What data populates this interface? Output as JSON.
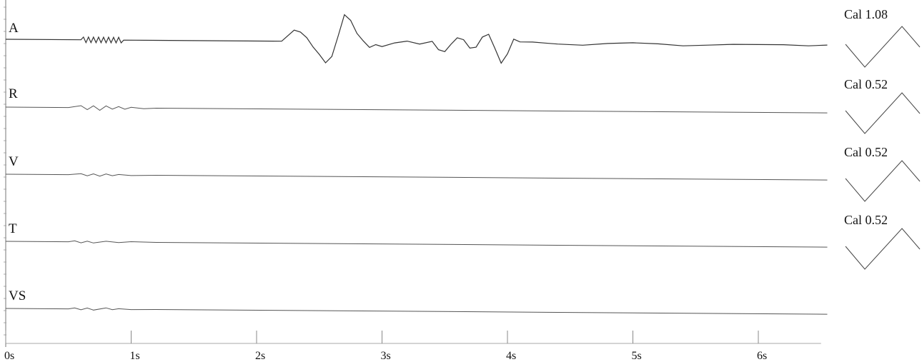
{
  "chart_data": {
    "type": "line",
    "x_tick_labels": [
      "0s",
      "1s",
      "2s",
      "3s",
      "4s",
      "5s",
      "6s"
    ],
    "x_ticks": [
      0,
      1,
      2,
      3,
      4,
      5,
      6
    ],
    "xlim": [
      0,
      6.5
    ],
    "channels": [
      {
        "label": "A",
        "calibration": "Cal 1.08",
        "points": [
          [
            0,
            0
          ],
          [
            0.6,
            0
          ],
          [
            0.62,
            0.3
          ],
          [
            0.64,
            -0.3
          ],
          [
            0.66,
            0.3
          ],
          [
            0.68,
            -0.3
          ],
          [
            0.7,
            0.3
          ],
          [
            0.72,
            -0.3
          ],
          [
            0.74,
            0.3
          ],
          [
            0.76,
            -0.3
          ],
          [
            0.78,
            0.3
          ],
          [
            0.8,
            -0.3
          ],
          [
            0.82,
            0.3
          ],
          [
            0.84,
            -0.3
          ],
          [
            0.86,
            0.3
          ],
          [
            0.88,
            -0.3
          ],
          [
            0.9,
            0.3
          ],
          [
            0.92,
            -0.3
          ],
          [
            0.94,
            0
          ],
          [
            1.2,
            0
          ],
          [
            2.2,
            0
          ],
          [
            2.3,
            1.2
          ],
          [
            2.35,
            1.0
          ],
          [
            2.4,
            0.4
          ],
          [
            2.45,
            -0.6
          ],
          [
            2.5,
            -1.4
          ],
          [
            2.55,
            -2.3
          ],
          [
            2.6,
            -1.6
          ],
          [
            2.65,
            0.6
          ],
          [
            2.7,
            2.9
          ],
          [
            2.75,
            2.3
          ],
          [
            2.8,
            0.9
          ],
          [
            2.85,
            0.1
          ],
          [
            2.9,
            -0.6
          ],
          [
            2.95,
            -0.3
          ],
          [
            3.0,
            -0.5
          ],
          [
            3.1,
            -0.1
          ],
          [
            3.2,
            0.1
          ],
          [
            3.3,
            -0.2
          ],
          [
            3.4,
            0.1
          ],
          [
            3.45,
            -0.8
          ],
          [
            3.5,
            -1.0
          ],
          [
            3.55,
            -0.2
          ],
          [
            3.6,
            0.5
          ],
          [
            3.65,
            0.3
          ],
          [
            3.7,
            -0.6
          ],
          [
            3.75,
            -0.5
          ],
          [
            3.8,
            0.6
          ],
          [
            3.85,
            0.9
          ],
          [
            3.9,
            -0.6
          ],
          [
            3.95,
            -2.2
          ],
          [
            4.0,
            -1.2
          ],
          [
            4.05,
            0.4
          ],
          [
            4.1,
            0.1
          ],
          [
            4.2,
            0.1
          ],
          [
            4.3,
            0
          ],
          [
            4.4,
            -0.1
          ],
          [
            4.6,
            -0.2
          ],
          [
            4.8,
            0
          ],
          [
            5.0,
            0.1
          ],
          [
            5.2,
            0
          ],
          [
            5.4,
            -0.2
          ],
          [
            5.6,
            -0.1
          ],
          [
            5.8,
            0
          ],
          [
            6.0,
            0
          ],
          [
            6.2,
            0
          ],
          [
            6.4,
            -0.1
          ],
          [
            6.55,
            0
          ]
        ]
      },
      {
        "label": "R",
        "calibration": "Cal 0.52",
        "points": [
          [
            0,
            0
          ],
          [
            0.5,
            0
          ],
          [
            0.6,
            0.3
          ],
          [
            0.65,
            -0.3
          ],
          [
            0.7,
            0.3
          ],
          [
            0.75,
            -0.4
          ],
          [
            0.8,
            0.3
          ],
          [
            0.85,
            -0.2
          ],
          [
            0.9,
            0.2
          ],
          [
            0.95,
            -0.2
          ],
          [
            1.0,
            0.1
          ],
          [
            1.1,
            -0.1
          ],
          [
            1.2,
            0
          ],
          [
            6.55,
            0
          ]
        ]
      },
      {
        "label": "V",
        "calibration": "Cal 0.52",
        "points": [
          [
            0,
            0
          ],
          [
            0.5,
            0
          ],
          [
            0.6,
            0.2
          ],
          [
            0.65,
            -0.2
          ],
          [
            0.7,
            0.2
          ],
          [
            0.75,
            -0.25
          ],
          [
            0.8,
            0.2
          ],
          [
            0.85,
            -0.15
          ],
          [
            0.9,
            0.1
          ],
          [
            1.0,
            -0.1
          ],
          [
            1.2,
            0
          ],
          [
            6.55,
            0
          ]
        ]
      },
      {
        "label": "T",
        "calibration": "Cal 0.52",
        "points": [
          [
            0,
            0
          ],
          [
            0.5,
            0
          ],
          [
            0.55,
            0.2
          ],
          [
            0.6,
            -0.2
          ],
          [
            0.65,
            0.15
          ],
          [
            0.7,
            -0.2
          ],
          [
            0.8,
            0.15
          ],
          [
            0.9,
            -0.1
          ],
          [
            1.0,
            0.1
          ],
          [
            1.2,
            0
          ],
          [
            6.55,
            0
          ]
        ]
      },
      {
        "label": "VS",
        "calibration": "",
        "points": [
          [
            0,
            0
          ],
          [
            0.5,
            0
          ],
          [
            0.55,
            0.2
          ],
          [
            0.6,
            -0.15
          ],
          [
            0.65,
            0.2
          ],
          [
            0.7,
            -0.2
          ],
          [
            0.8,
            0.25
          ],
          [
            0.85,
            -0.1
          ],
          [
            0.9,
            0.1
          ],
          [
            1.0,
            -0.05
          ],
          [
            1.2,
            0
          ],
          [
            6.55,
            0
          ]
        ]
      }
    ],
    "grid": false,
    "title": "",
    "xlabel": "",
    "ylabel": ""
  }
}
